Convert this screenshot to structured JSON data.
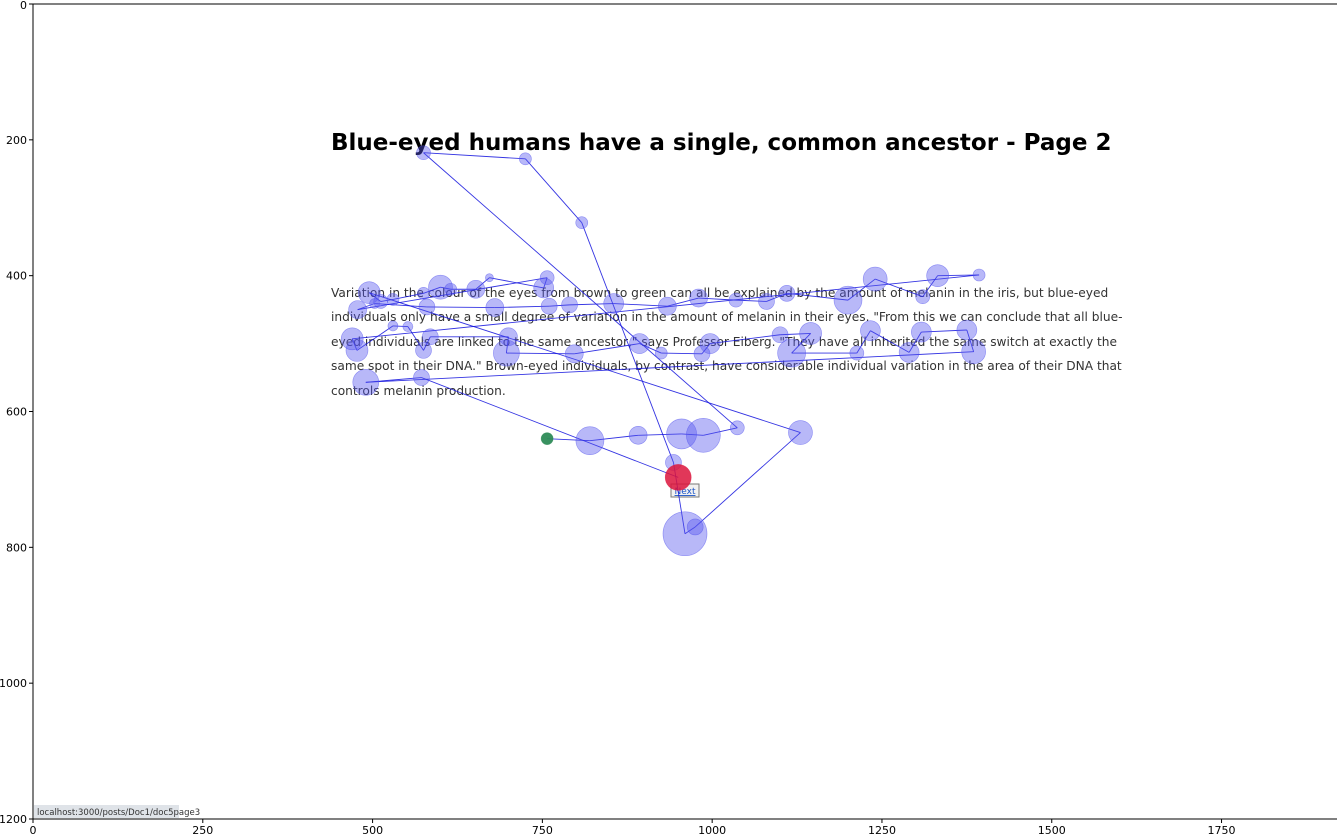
{
  "page": {
    "title": "Blue-eyed humans have a single, common ancestor - Page 2",
    "paragraph_lines": [
      "Variation in the colour of the eyes from brown to green can all be explained by the amount of melanin in the iris, but blue-eyed",
      "individuals only have a small degree of variation in the amount of melanin in their eyes. \"From this we can conclude that all blue-",
      "eyed individuals are linked to the same ancestor,\" says Professor Eiberg. \"They have all inherited the same switch at exactly the",
      "same spot in their DNA.\" Brown-eyed individuals, by contrast, have considerable individual variation in the area of their DNA that",
      "controls melanin production."
    ],
    "next_label": "Next",
    "status_url": "localhost:3000/posts/Doc1/doc5page3"
  },
  "colors": {
    "fixation_fill": "#5555ee",
    "scanpath_line": "#1111dd",
    "start_point": "#2e8b57",
    "end_point": "#dc143c"
  },
  "chart_data": {
    "type": "scatter",
    "subtype": "gaze-scanpath",
    "title": "",
    "xlabel": "",
    "ylabel": "",
    "xlim": [
      0,
      1920
    ],
    "ylim": [
      1200,
      0
    ],
    "x_ticks": [
      0,
      250,
      500,
      750,
      1000,
      1250,
      1500,
      1750
    ],
    "y_ticks": [
      0,
      200,
      400,
      600,
      800,
      1000,
      1200
    ],
    "grid": false,
    "points": [
      {
        "x": 757,
        "y": 640,
        "r": 6
      },
      {
        "x": 820,
        "y": 643,
        "r": 14
      },
      {
        "x": 891,
        "y": 635,
        "r": 9
      },
      {
        "x": 955,
        "y": 633,
        "r": 15
      },
      {
        "x": 987,
        "y": 635,
        "r": 17
      },
      {
        "x": 1037,
        "y": 624,
        "r": 7
      },
      {
        "x": 575,
        "y": 219,
        "r": 7
      },
      {
        "x": 725,
        "y": 228,
        "r": 6
      },
      {
        "x": 808,
        "y": 322,
        "r": 6
      },
      {
        "x": 943,
        "y": 675,
        "r": 8
      },
      {
        "x": 960,
        "y": 780,
        "r": 22
      },
      {
        "x": 975,
        "y": 770,
        "r": 8
      },
      {
        "x": 1130,
        "y": 631,
        "r": 12
      },
      {
        "x": 495,
        "y": 425,
        "r": 11
      },
      {
        "x": 512,
        "y": 438,
        "r": 7
      },
      {
        "x": 530,
        "y": 435,
        "r": 6
      },
      {
        "x": 575,
        "y": 426,
        "r": 6
      },
      {
        "x": 600,
        "y": 417,
        "r": 12
      },
      {
        "x": 615,
        "y": 420,
        "r": 6
      },
      {
        "x": 652,
        "y": 420,
        "r": 9
      },
      {
        "x": 672,
        "y": 403,
        "r": 4
      },
      {
        "x": 752,
        "y": 418,
        "r": 10
      },
      {
        "x": 757,
        "y": 403,
        "r": 7
      },
      {
        "x": 478,
        "y": 450,
        "r": 9
      },
      {
        "x": 503,
        "y": 441,
        "r": 5
      },
      {
        "x": 580,
        "y": 446,
        "r": 8
      },
      {
        "x": 680,
        "y": 447,
        "r": 9
      },
      {
        "x": 760,
        "y": 445,
        "r": 8
      },
      {
        "x": 790,
        "y": 443,
        "r": 8
      },
      {
        "x": 855,
        "y": 441,
        "r": 10
      },
      {
        "x": 934,
        "y": 445,
        "r": 9
      },
      {
        "x": 980,
        "y": 433,
        "r": 9
      },
      {
        "x": 1035,
        "y": 436,
        "r": 7
      },
      {
        "x": 1080,
        "y": 438,
        "r": 8
      },
      {
        "x": 1110,
        "y": 426,
        "r": 8
      },
      {
        "x": 1200,
        "y": 436,
        "r": 14
      },
      {
        "x": 1240,
        "y": 405,
        "r": 12
      },
      {
        "x": 1310,
        "y": 431,
        "r": 7
      },
      {
        "x": 1332,
        "y": 400,
        "r": 11
      },
      {
        "x": 1393,
        "y": 399,
        "r": 6
      },
      {
        "x": 470,
        "y": 493,
        "r": 11
      },
      {
        "x": 477,
        "y": 510,
        "r": 11
      },
      {
        "x": 530,
        "y": 474,
        "r": 5
      },
      {
        "x": 552,
        "y": 475,
        "r": 5
      },
      {
        "x": 575,
        "y": 510,
        "r": 8
      },
      {
        "x": 585,
        "y": 490,
        "r": 8
      },
      {
        "x": 700,
        "y": 490,
        "r": 9
      },
      {
        "x": 697,
        "y": 514,
        "r": 13
      },
      {
        "x": 797,
        "y": 515,
        "r": 9
      },
      {
        "x": 893,
        "y": 500,
        "r": 10
      },
      {
        "x": 925,
        "y": 514,
        "r": 6
      },
      {
        "x": 985,
        "y": 515,
        "r": 8
      },
      {
        "x": 997,
        "y": 500,
        "r": 10
      },
      {
        "x": 1100,
        "y": 487,
        "r": 8
      },
      {
        "x": 1145,
        "y": 485,
        "r": 11
      },
      {
        "x": 1117,
        "y": 514,
        "r": 14
      },
      {
        "x": 1213,
        "y": 514,
        "r": 7
      },
      {
        "x": 1233,
        "y": 481,
        "r": 10
      },
      {
        "x": 1290,
        "y": 513,
        "r": 10
      },
      {
        "x": 1308,
        "y": 483,
        "r": 10
      },
      {
        "x": 1375,
        "y": 480,
        "r": 10
      },
      {
        "x": 1385,
        "y": 512,
        "r": 12
      },
      {
        "x": 490,
        "y": 557,
        "r": 13
      },
      {
        "x": 572,
        "y": 550,
        "r": 8
      },
      {
        "x": 950,
        "y": 697,
        "r": 13
      }
    ]
  }
}
